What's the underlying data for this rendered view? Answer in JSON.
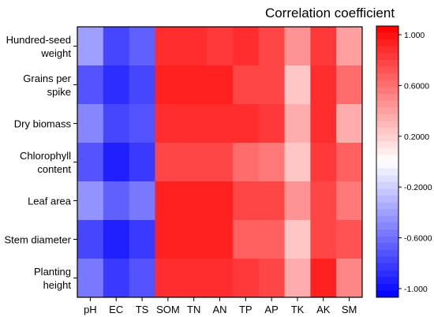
{
  "chart_data": {
    "type": "heatmap",
    "title": "Correlation coefficient",
    "rows": [
      "Hundred-seed weight",
      "Grains per spike",
      "Dry biomass",
      "Chlorophyll content",
      "Leaf area",
      "Stem diameter",
      "Planting height"
    ],
    "row_label_lines": [
      [
        "Hundred-seed",
        "weight"
      ],
      [
        "Grains per",
        "spike"
      ],
      [
        "Dry biomass"
      ],
      [
        "Chlorophyll",
        "content"
      ],
      [
        "Leaf area"
      ],
      [
        "Stem diameter"
      ],
      [
        "Planting",
        "height"
      ]
    ],
    "columns": [
      "pH",
      "EC",
      "TS",
      "SOM",
      "TN",
      "AN",
      "TP",
      "AP",
      "TK",
      "AK",
      "SM"
    ],
    "values": [
      [
        -0.38,
        -0.72,
        -0.62,
        0.83,
        0.83,
        0.78,
        0.8,
        0.73,
        0.4,
        0.78,
        0.35
      ],
      [
        -0.67,
        -0.83,
        -0.75,
        0.85,
        0.85,
        0.85,
        0.7,
        0.72,
        0.2,
        0.84,
        0.58
      ],
      [
        -0.5,
        -0.75,
        -0.68,
        0.84,
        0.84,
        0.8,
        0.8,
        0.78,
        0.3,
        0.8,
        0.3
      ],
      [
        -0.66,
        -0.87,
        -0.77,
        0.74,
        0.7,
        0.7,
        0.58,
        0.5,
        0.2,
        0.76,
        0.62
      ],
      [
        -0.42,
        -0.62,
        -0.52,
        0.85,
        0.85,
        0.85,
        0.72,
        0.72,
        0.42,
        0.7,
        0.52
      ],
      [
        -0.72,
        -0.87,
        -0.78,
        0.85,
        0.85,
        0.85,
        0.62,
        0.6,
        0.22,
        0.72,
        0.66
      ],
      [
        -0.54,
        -0.78,
        -0.7,
        0.84,
        0.84,
        0.84,
        0.78,
        0.74,
        0.3,
        0.88,
        0.45
      ]
    ],
    "colorbar": {
      "min": -1.0,
      "max": 1.0,
      "ticks": [
        "1.000",
        "0.6000",
        "0.2000",
        "-0.2000",
        "-0.6000",
        "-1.000"
      ],
      "tick_values": [
        1.0,
        0.6,
        0.2,
        -0.2,
        -0.6,
        -1.0
      ],
      "low_color": "#0000ff",
      "mid_color": "#ffffff",
      "high_color": "#ff0000",
      "steps": 40
    }
  }
}
